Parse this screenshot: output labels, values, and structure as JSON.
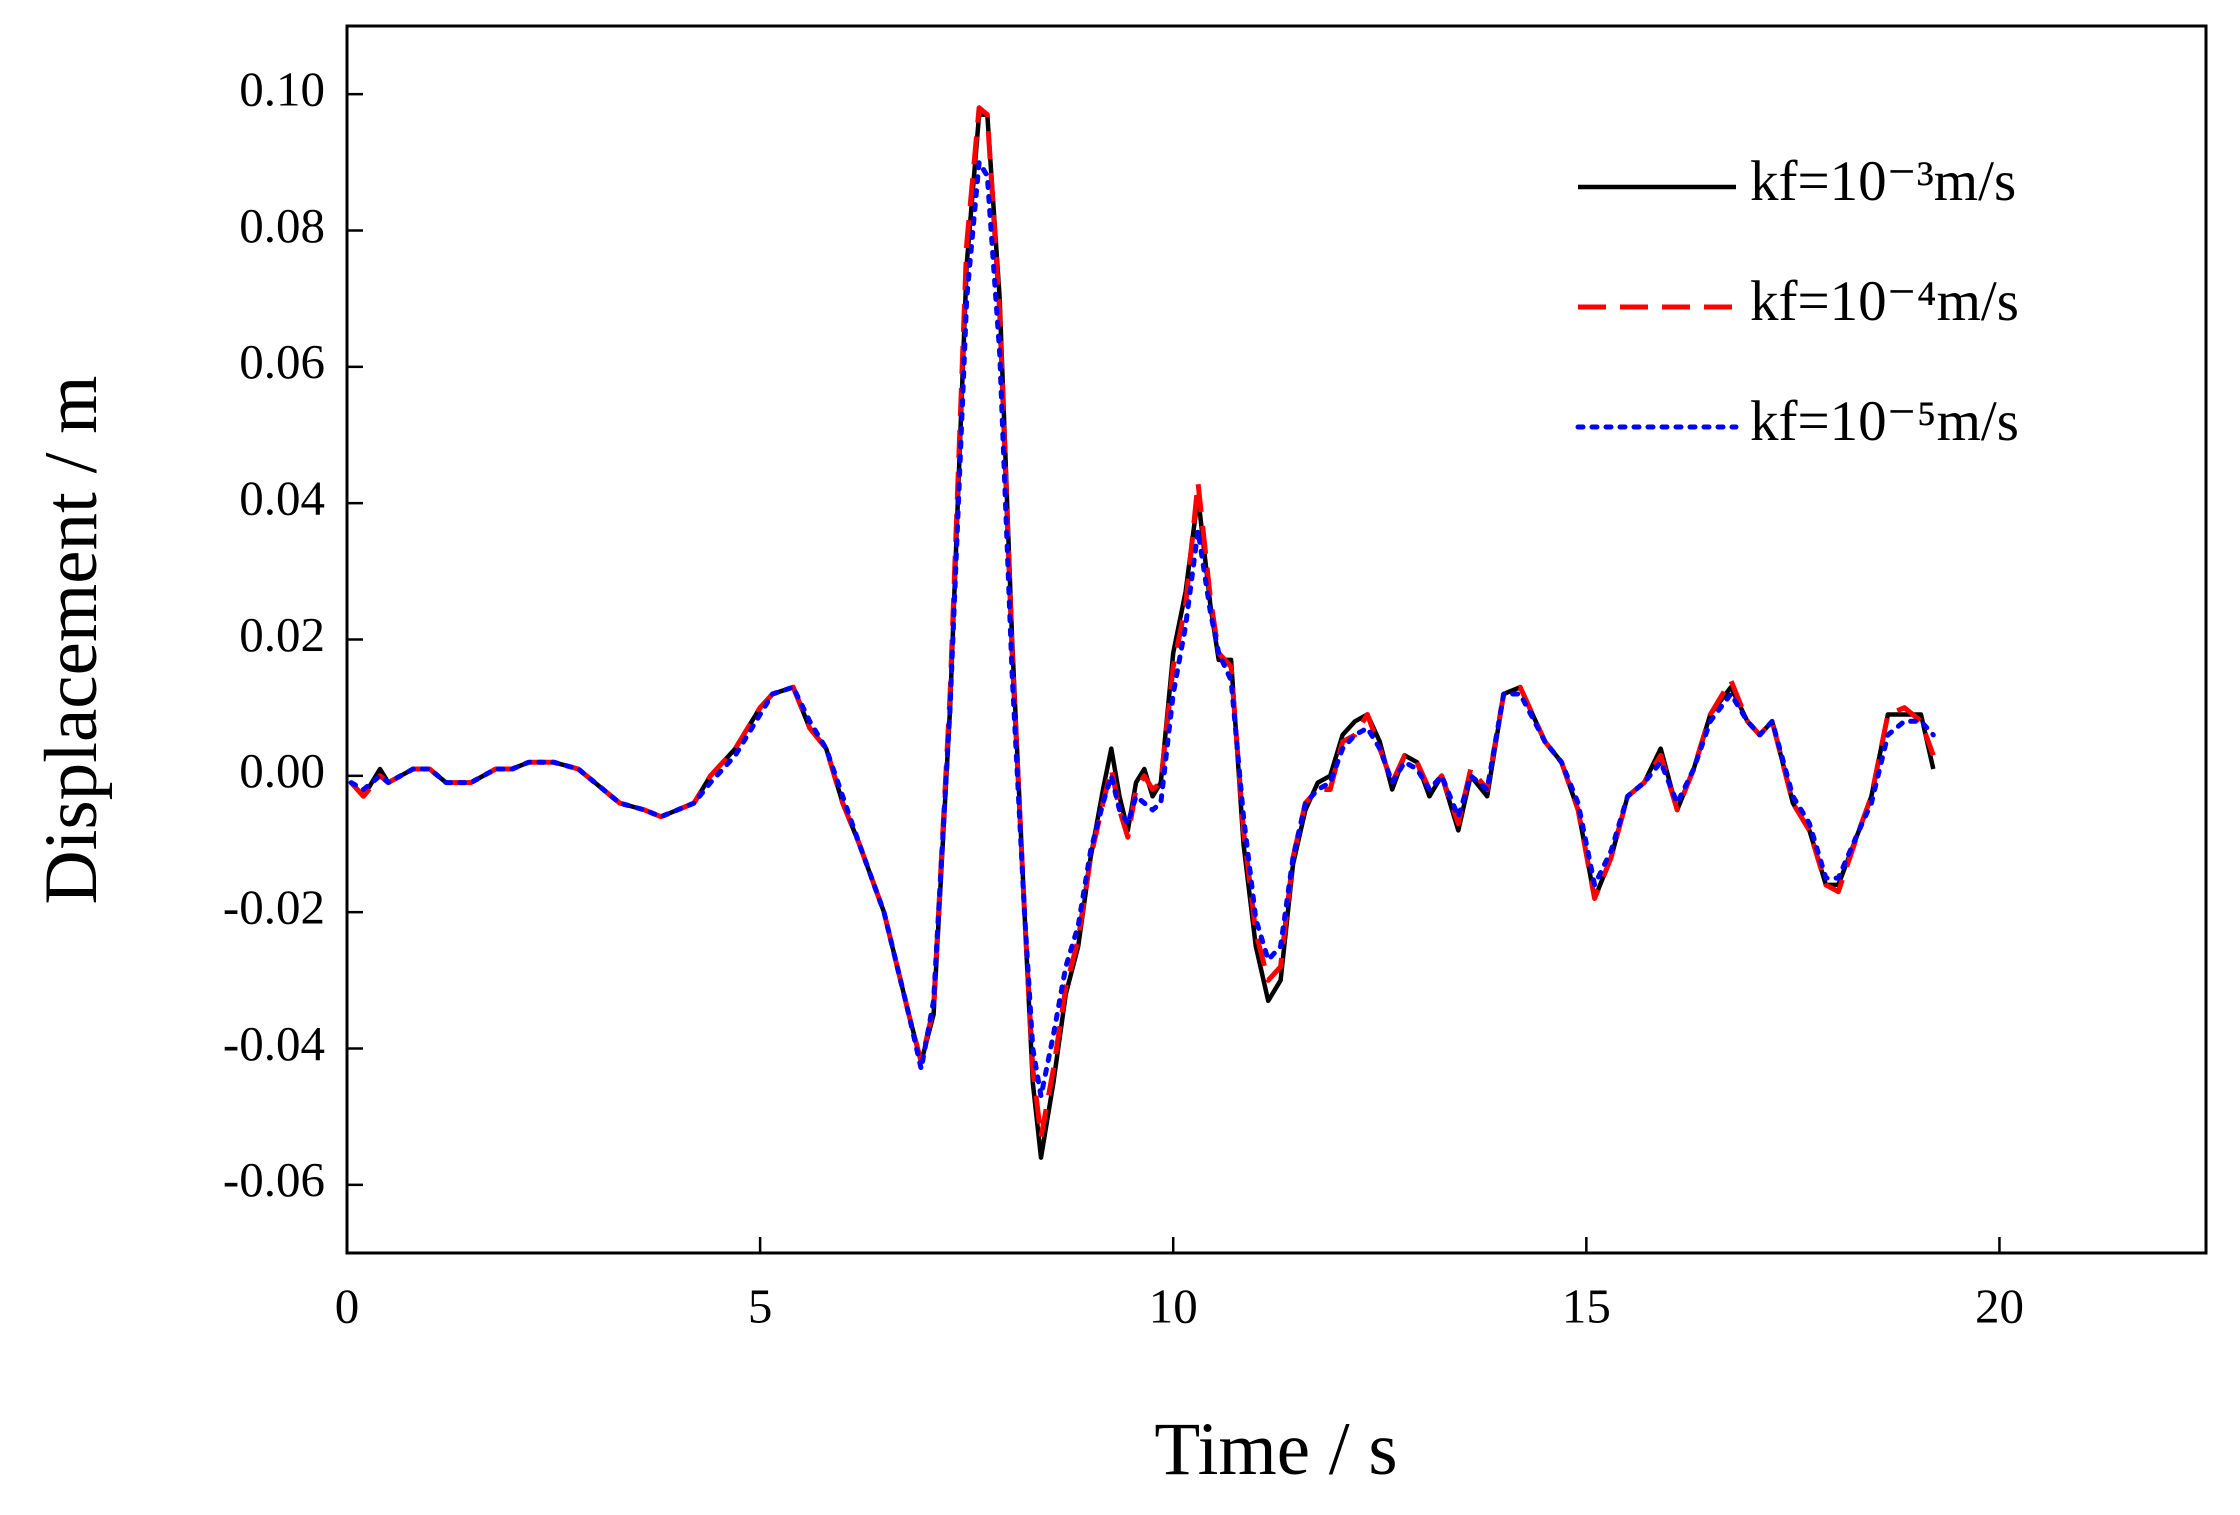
{
  "chart_data": {
    "type": "line",
    "xlabel": "Time / s",
    "ylabel": "Displacement / m",
    "xlim": [
      0,
      22.5
    ],
    "ylim": [
      -0.07,
      0.11
    ],
    "xticks": [
      0,
      5,
      10,
      15,
      20
    ],
    "yticks": [
      {
        "value": -0.06,
        "label": "-0.06"
      },
      {
        "value": -0.04,
        "label": "-0.04"
      },
      {
        "value": -0.02,
        "label": "-0.02"
      },
      {
        "value": 0,
        "label": "0.00"
      },
      {
        "value": 0.02,
        "label": "0.02"
      },
      {
        "value": 0.04,
        "label": "0.04"
      },
      {
        "value": 0.06,
        "label": "0.06"
      },
      {
        "value": 0.08,
        "label": "0.08"
      },
      {
        "value": 0.1,
        "label": "0.10"
      }
    ],
    "x": [
      0.05,
      0.2,
      0.4,
      0.5,
      0.65,
      0.8,
      1.0,
      1.2,
      1.5,
      1.8,
      2.0,
      2.2,
      2.5,
      2.8,
      3.0,
      3.3,
      3.6,
      3.8,
      4.0,
      4.2,
      4.4,
      4.7,
      5.0,
      5.15,
      5.4,
      5.6,
      5.8,
      6.0,
      6.2,
      6.5,
      6.8,
      6.95,
      7.1,
      7.3,
      7.5,
      7.65,
      7.75,
      7.9,
      8.05,
      8.2,
      8.3,
      8.4,
      8.55,
      8.7,
      8.85,
      9.0,
      9.15,
      9.25,
      9.35,
      9.45,
      9.55,
      9.65,
      9.75,
      9.85,
      10.0,
      10.15,
      10.3,
      10.45,
      10.55,
      10.7,
      10.85,
      11.0,
      11.15,
      11.3,
      11.45,
      11.6,
      11.75,
      11.9,
      12.05,
      12.2,
      12.35,
      12.5,
      12.65,
      12.8,
      12.95,
      13.1,
      13.25,
      13.45,
      13.6,
      13.8,
      14.0,
      14.2,
      14.5,
      14.7,
      14.9,
      15.1,
      15.3,
      15.5,
      15.7,
      15.9,
      16.1,
      16.3,
      16.5,
      16.75,
      16.95,
      17.1,
      17.25,
      17.5,
      17.7,
      17.9,
      18.05,
      18.3,
      18.45,
      18.65,
      18.85,
      19.05,
      19.2
    ],
    "series": [
      {
        "name": "kf=10⁻³m/s",
        "color": "#000000",
        "dash": "solid",
        "values": [
          -0.001,
          -0.003,
          0.001,
          -0.001,
          0.0,
          0.001,
          0.001,
          -0.001,
          -0.001,
          0.001,
          0.001,
          0.002,
          0.002,
          0.001,
          -0.001,
          -0.004,
          -0.005,
          -0.006,
          -0.005,
          -0.004,
          0.0,
          0.004,
          0.01,
          0.012,
          0.013,
          0.007,
          0.004,
          -0.004,
          -0.01,
          -0.02,
          -0.035,
          -0.042,
          -0.035,
          0.01,
          0.075,
          0.097,
          0.097,
          0.07,
          0.02,
          -0.02,
          -0.045,
          -0.056,
          -0.045,
          -0.032,
          -0.025,
          -0.012,
          -0.002,
          0.004,
          -0.003,
          -0.008,
          -0.001,
          0.001,
          -0.003,
          -0.001,
          0.018,
          0.027,
          0.041,
          0.025,
          0.017,
          0.017,
          -0.01,
          -0.025,
          -0.033,
          -0.03,
          -0.013,
          -0.005,
          -0.001,
          0.0,
          0.006,
          0.008,
          0.009,
          0.005,
          -0.002,
          0.003,
          0.002,
          -0.003,
          0.0,
          -0.008,
          0.0,
          -0.003,
          0.012,
          0.013,
          0.005,
          0.002,
          -0.005,
          -0.018,
          -0.012,
          -0.003,
          -0.001,
          0.004,
          -0.005,
          0.001,
          0.009,
          0.013,
          0.008,
          0.006,
          0.008,
          -0.004,
          -0.008,
          -0.016,
          -0.016,
          -0.008,
          -0.003,
          0.009,
          0.009,
          0.009,
          0.001
        ]
      },
      {
        "name": "kf=10⁻⁴m/s",
        "color": "#ff0000",
        "dash": "dashed",
        "values": [
          -0.001,
          -0.003,
          0.0,
          -0.001,
          0.0,
          0.001,
          0.001,
          -0.001,
          -0.001,
          0.001,
          0.001,
          0.002,
          0.002,
          0.001,
          -0.001,
          -0.004,
          -0.005,
          -0.006,
          -0.005,
          -0.004,
          0.0,
          0.004,
          0.01,
          0.012,
          0.013,
          0.007,
          0.004,
          -0.004,
          -0.01,
          -0.02,
          -0.035,
          -0.042,
          -0.034,
          0.012,
          0.078,
          0.098,
          0.097,
          0.068,
          0.018,
          -0.02,
          -0.043,
          -0.053,
          -0.043,
          -0.031,
          -0.024,
          -0.012,
          -0.004,
          0.001,
          -0.005,
          -0.009,
          -0.002,
          0.0,
          -0.002,
          -0.001,
          0.016,
          0.025,
          0.043,
          0.026,
          0.018,
          0.016,
          -0.008,
          -0.023,
          -0.03,
          -0.028,
          -0.012,
          -0.004,
          -0.002,
          -0.002,
          0.005,
          0.006,
          0.009,
          0.004,
          -0.001,
          0.003,
          0.002,
          -0.002,
          0.0,
          -0.007,
          0.001,
          -0.002,
          0.012,
          0.013,
          0.005,
          0.002,
          -0.005,
          -0.018,
          -0.012,
          -0.003,
          -0.001,
          0.003,
          -0.005,
          0.001,
          0.009,
          0.014,
          0.008,
          0.006,
          0.008,
          -0.004,
          -0.008,
          -0.016,
          -0.017,
          -0.008,
          -0.003,
          0.009,
          0.01,
          0.008,
          0.003
        ]
      },
      {
        "name": "kf=10⁻⁵m/s",
        "color": "#0000ff",
        "dash": "dotted",
        "values": [
          -0.001,
          -0.002,
          0.0,
          -0.001,
          0.0,
          0.001,
          0.001,
          -0.001,
          -0.001,
          0.001,
          0.001,
          0.002,
          0.002,
          0.001,
          -0.001,
          -0.004,
          -0.005,
          -0.006,
          -0.005,
          -0.004,
          -0.001,
          0.003,
          0.009,
          0.012,
          0.013,
          0.008,
          0.004,
          -0.003,
          -0.01,
          -0.02,
          -0.035,
          -0.043,
          -0.033,
          0.01,
          0.07,
          0.09,
          0.088,
          0.062,
          0.015,
          -0.02,
          -0.04,
          -0.047,
          -0.038,
          -0.028,
          -0.022,
          -0.011,
          -0.004,
          0.0,
          -0.005,
          -0.007,
          -0.003,
          -0.004,
          -0.005,
          -0.004,
          0.012,
          0.022,
          0.036,
          0.024,
          0.018,
          0.014,
          -0.006,
          -0.021,
          -0.027,
          -0.025,
          -0.012,
          -0.004,
          -0.002,
          -0.001,
          0.004,
          0.006,
          0.007,
          0.004,
          -0.001,
          0.002,
          0.001,
          -0.002,
          0.0,
          -0.006,
          0.0,
          -0.002,
          0.012,
          0.012,
          0.005,
          0.002,
          -0.004,
          -0.016,
          -0.011,
          -0.003,
          -0.001,
          0.002,
          -0.004,
          0.001,
          0.008,
          0.012,
          0.008,
          0.006,
          0.008,
          -0.003,
          -0.007,
          -0.015,
          -0.015,
          -0.008,
          -0.004,
          0.006,
          0.008,
          0.008,
          0.006
        ]
      }
    ]
  }
}
